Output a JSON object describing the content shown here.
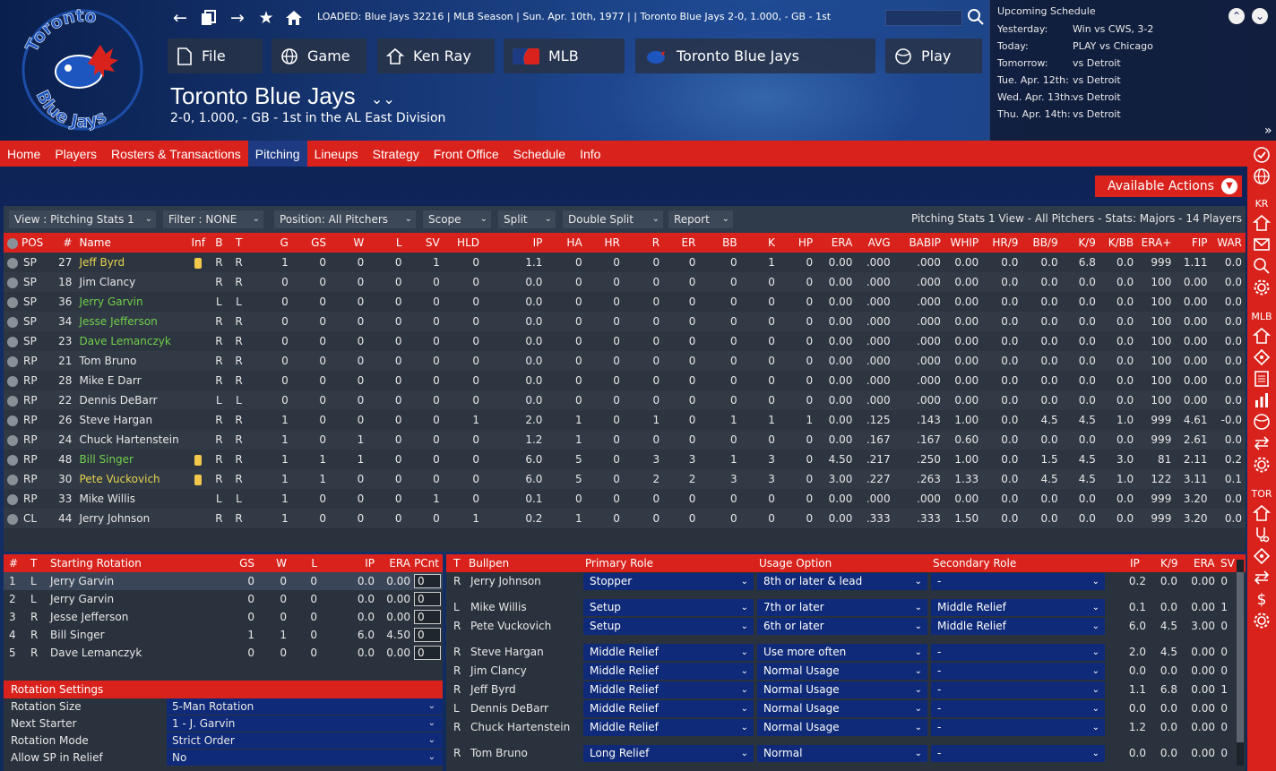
{
  "header": {
    "loaded_text": "LOADED: Blue Jays 32216  |  MLB Season  |  Sun. Apr. 10th, 1977  |   |  Toronto Blue Jays   2-0, 1.000, - GB - 1st",
    "team_title": "Toronto Blue Jays",
    "team_subtitle": "2-0, 1.000, - GB - 1st in the AL East Division",
    "logo_top": "Toronto",
    "logo_bottom": "Blue Jays",
    "buttons": {
      "file": "File",
      "game": "Game",
      "manager": "Ken Ray",
      "league": "MLB",
      "team": "Toronto Blue Jays",
      "play": "Play"
    }
  },
  "schedule": {
    "title": "Upcoming Schedule",
    "rows": [
      {
        "label": "Yesterday:",
        "value": "Win vs CWS, 3-2"
      },
      {
        "label": "Today:",
        "value": "PLAY vs Chicago"
      },
      {
        "label": "Tomorrow:",
        "value": "vs Detroit"
      },
      {
        "label": "Tue. Apr. 12th:",
        "value": "vs Detroit"
      },
      {
        "label": "Wed. Apr. 13th:",
        "value": "vs Detroit"
      },
      {
        "label": "Thu. Apr. 14th:",
        "value": "vs Detroit"
      }
    ]
  },
  "menu": [
    "Home",
    "Players",
    "Rosters & Transactions",
    "Pitching",
    "Lineups",
    "Strategy",
    "Front Office",
    "Schedule",
    "Info"
  ],
  "side": {
    "kr": "KR",
    "mlb": "MLB",
    "tor": "TOR"
  },
  "available_actions": "Available Actions",
  "toolbar": {
    "view": "View : Pitching Stats 1",
    "filter": "Filter : NONE",
    "position": "Position: All Pitchers",
    "scope": "Scope",
    "split": "Split",
    "double_split": "Double Split",
    "report": "Report",
    "info": "Pitching Stats 1 View - All Pitchers - Stats: Majors - 14 Players"
  },
  "stats": {
    "columns": [
      "POS",
      "#",
      "Name",
      "Inf",
      "B",
      "T",
      "G",
      "GS",
      "W",
      "L",
      "SV",
      "HLD",
      "IP",
      "HA",
      "HR",
      "R",
      "ER",
      "BB",
      "K",
      "HP",
      "ERA",
      "AVG",
      "BABIP",
      "WHIP",
      "HR/9",
      "BB/9",
      "K/9",
      "K/BB",
      "ERA+",
      "FIP",
      "WAR"
    ],
    "rows": [
      {
        "pos": "SP",
        "num": "27",
        "name": "Jeff Byrd",
        "color": "y",
        "inf": true,
        "b": "R",
        "t": "R",
        "v": [
          "1",
          "0",
          "0",
          "0",
          "1",
          "0",
          "1.1",
          "0",
          "0",
          "0",
          "0",
          "0",
          "1",
          "0",
          "0.00",
          ".000",
          ".000",
          "0.00",
          "0.0",
          "0.0",
          "6.8",
          "0.0",
          "999",
          "1.11",
          "0.0"
        ]
      },
      {
        "pos": "SP",
        "num": "18",
        "name": "Jim Clancy",
        "color": "",
        "inf": false,
        "b": "R",
        "t": "R",
        "v": [
          "0",
          "0",
          "0",
          "0",
          "0",
          "0",
          "0.0",
          "0",
          "0",
          "0",
          "0",
          "0",
          "0",
          "0",
          "0.00",
          ".000",
          ".000",
          "0.00",
          "0.0",
          "0.0",
          "0.0",
          "0.0",
          "100",
          "0.00",
          "0.0"
        ]
      },
      {
        "pos": "SP",
        "num": "36",
        "name": "Jerry Garvin",
        "color": "g",
        "inf": false,
        "b": "L",
        "t": "L",
        "v": [
          "0",
          "0",
          "0",
          "0",
          "0",
          "0",
          "0.0",
          "0",
          "0",
          "0",
          "0",
          "0",
          "0",
          "0",
          "0.00",
          ".000",
          ".000",
          "0.00",
          "0.0",
          "0.0",
          "0.0",
          "0.0",
          "100",
          "0.00",
          "0.0"
        ]
      },
      {
        "pos": "SP",
        "num": "34",
        "name": "Jesse Jefferson",
        "color": "g",
        "inf": false,
        "b": "R",
        "t": "R",
        "v": [
          "0",
          "0",
          "0",
          "0",
          "0",
          "0",
          "0.0",
          "0",
          "0",
          "0",
          "0",
          "0",
          "0",
          "0",
          "0.00",
          ".000",
          ".000",
          "0.00",
          "0.0",
          "0.0",
          "0.0",
          "0.0",
          "100",
          "0.00",
          "0.0"
        ]
      },
      {
        "pos": "SP",
        "num": "23",
        "name": "Dave Lemanczyk",
        "color": "g",
        "inf": false,
        "b": "R",
        "t": "R",
        "v": [
          "0",
          "0",
          "0",
          "0",
          "0",
          "0",
          "0.0",
          "0",
          "0",
          "0",
          "0",
          "0",
          "0",
          "0",
          "0.00",
          ".000",
          ".000",
          "0.00",
          "0.0",
          "0.0",
          "0.0",
          "0.0",
          "100",
          "0.00",
          "0.0"
        ]
      },
      {
        "pos": "RP",
        "num": "21",
        "name": "Tom Bruno",
        "color": "",
        "inf": false,
        "b": "R",
        "t": "R",
        "v": [
          "0",
          "0",
          "0",
          "0",
          "0",
          "0",
          "0.0",
          "0",
          "0",
          "0",
          "0",
          "0",
          "0",
          "0",
          "0.00",
          ".000",
          ".000",
          "0.00",
          "0.0",
          "0.0",
          "0.0",
          "0.0",
          "100",
          "0.00",
          "0.0"
        ]
      },
      {
        "pos": "RP",
        "num": "28",
        "name": "Mike E Darr",
        "color": "",
        "inf": false,
        "b": "R",
        "t": "R",
        "v": [
          "0",
          "0",
          "0",
          "0",
          "0",
          "0",
          "0.0",
          "0",
          "0",
          "0",
          "0",
          "0",
          "0",
          "0",
          "0.00",
          ".000",
          ".000",
          "0.00",
          "0.0",
          "0.0",
          "0.0",
          "0.0",
          "100",
          "0.00",
          "0.0"
        ]
      },
      {
        "pos": "RP",
        "num": "22",
        "name": "Dennis DeBarr",
        "color": "",
        "inf": false,
        "b": "L",
        "t": "L",
        "v": [
          "0",
          "0",
          "0",
          "0",
          "0",
          "0",
          "0.0",
          "0",
          "0",
          "0",
          "0",
          "0",
          "0",
          "0",
          "0.00",
          ".000",
          ".000",
          "0.00",
          "0.0",
          "0.0",
          "0.0",
          "0.0",
          "100",
          "0.00",
          "0.0"
        ]
      },
      {
        "pos": "RP",
        "num": "26",
        "name": "Steve Hargan",
        "color": "",
        "inf": false,
        "b": "R",
        "t": "R",
        "v": [
          "1",
          "0",
          "0",
          "0",
          "0",
          "1",
          "2.0",
          "1",
          "0",
          "1",
          "0",
          "1",
          "1",
          "1",
          "0.00",
          ".125",
          ".143",
          "1.00",
          "0.0",
          "4.5",
          "4.5",
          "1.0",
          "999",
          "4.61",
          "-0.0"
        ]
      },
      {
        "pos": "RP",
        "num": "24",
        "name": "Chuck Hartenstein",
        "color": "",
        "inf": false,
        "b": "R",
        "t": "R",
        "v": [
          "1",
          "0",
          "1",
          "0",
          "0",
          "0",
          "1.2",
          "1",
          "0",
          "0",
          "0",
          "0",
          "0",
          "0",
          "0.00",
          ".167",
          ".167",
          "0.60",
          "0.0",
          "0.0",
          "0.0",
          "0.0",
          "999",
          "2.61",
          "0.0"
        ]
      },
      {
        "pos": "RP",
        "num": "48",
        "name": "Bill Singer",
        "color": "g",
        "inf": true,
        "b": "R",
        "t": "R",
        "v": [
          "1",
          "1",
          "1",
          "0",
          "0",
          "0",
          "6.0",
          "5",
          "0",
          "3",
          "3",
          "1",
          "3",
          "0",
          "4.50",
          ".217",
          ".250",
          "1.00",
          "0.0",
          "1.5",
          "4.5",
          "3.0",
          "81",
          "2.11",
          "0.2"
        ]
      },
      {
        "pos": "RP",
        "num": "30",
        "name": "Pete Vuckovich",
        "color": "y",
        "inf": true,
        "b": "R",
        "t": "R",
        "v": [
          "1",
          "1",
          "0",
          "0",
          "0",
          "0",
          "6.0",
          "5",
          "0",
          "2",
          "2",
          "3",
          "3",
          "0",
          "3.00",
          ".227",
          ".263",
          "1.33",
          "0.0",
          "4.5",
          "4.5",
          "1.0",
          "122",
          "3.11",
          "0.1"
        ]
      },
      {
        "pos": "RP",
        "num": "33",
        "name": "Mike Willis",
        "color": "",
        "inf": false,
        "b": "L",
        "t": "L",
        "v": [
          "1",
          "0",
          "0",
          "0",
          "1",
          "0",
          "0.1",
          "0",
          "0",
          "0",
          "0",
          "0",
          "0",
          "0",
          "0.00",
          ".000",
          ".000",
          "0.00",
          "0.0",
          "0.0",
          "0.0",
          "0.0",
          "999",
          "3.20",
          "0.0"
        ]
      },
      {
        "pos": "CL",
        "num": "44",
        "name": "Jerry Johnson",
        "color": "",
        "inf": false,
        "b": "R",
        "t": "R",
        "v": [
          "1",
          "0",
          "0",
          "0",
          "0",
          "1",
          "0.2",
          "1",
          "0",
          "0",
          "0",
          "0",
          "0",
          "0",
          "0.00",
          ".333",
          ".333",
          "1.50",
          "0.0",
          "0.0",
          "0.0",
          "0.0",
          "999",
          "3.20",
          "0.0"
        ]
      }
    ]
  },
  "rotation": {
    "columns": [
      "#",
      "T",
      "Starting Rotation",
      "GS",
      "W",
      "L",
      "IP",
      "ERA",
      "PCnt"
    ],
    "rows": [
      {
        "n": "1",
        "t": "L",
        "name": "Jerry Garvin",
        "gs": "0",
        "w": "0",
        "l": "0",
        "ip": "0.0",
        "era": "0.00",
        "pc": "0"
      },
      {
        "n": "2",
        "t": "L",
        "name": "Jerry Garvin",
        "gs": "0",
        "w": "0",
        "l": "0",
        "ip": "0.0",
        "era": "0.00",
        "pc": "0"
      },
      {
        "n": "3",
        "t": "R",
        "name": "Jesse Jefferson",
        "gs": "0",
        "w": "0",
        "l": "0",
        "ip": "0.0",
        "era": "0.00",
        "pc": "0"
      },
      {
        "n": "4",
        "t": "R",
        "name": "Bill Singer",
        "gs": "1",
        "w": "1",
        "l": "0",
        "ip": "6.0",
        "era": "4.50",
        "pc": "0"
      },
      {
        "n": "5",
        "t": "R",
        "name": "Dave Lemanczyk",
        "gs": "0",
        "w": "0",
        "l": "0",
        "ip": "0.0",
        "era": "0.00",
        "pc": "0"
      }
    ],
    "settings_title": "Rotation Settings",
    "settings": [
      {
        "key": "Rotation Size",
        "value": "5-Man Rotation"
      },
      {
        "key": "Next Starter",
        "value": "1 - J. Garvin"
      },
      {
        "key": "Rotation Mode",
        "value": "Strict Order"
      },
      {
        "key": "Allow SP in Relief",
        "value": "No"
      }
    ]
  },
  "bullpen": {
    "columns": [
      "T",
      "Bullpen",
      "Primary Role",
      "Usage Option",
      "Secondary Role",
      "IP",
      "K/9",
      "ERA",
      "SV"
    ],
    "rows": [
      {
        "t": "R",
        "name": "Jerry Johnson",
        "role": "Stopper",
        "usage": "8th or later & lead",
        "sec": "-",
        "ip": "0.2",
        "k9": "0.0",
        "era": "0.00",
        "sv": "0"
      },
      {
        "t": "L",
        "name": "Mike Willis",
        "role": "Setup",
        "usage": "7th or later",
        "sec": "Middle Relief",
        "ip": "0.1",
        "k9": "0.0",
        "era": "0.00",
        "sv": "1"
      },
      {
        "t": "R",
        "name": "Pete Vuckovich",
        "role": "Setup",
        "usage": "6th or later",
        "sec": "Middle Relief",
        "ip": "6.0",
        "k9": "4.5",
        "era": "3.00",
        "sv": "0"
      },
      {
        "t": "R",
        "name": "Steve Hargan",
        "role": "Middle Relief",
        "usage": "Use more often",
        "sec": "-",
        "ip": "2.0",
        "k9": "4.5",
        "era": "0.00",
        "sv": "0"
      },
      {
        "t": "R",
        "name": "Jim Clancy",
        "role": "Middle Relief",
        "usage": "Normal Usage",
        "sec": "-",
        "ip": "0.0",
        "k9": "0.0",
        "era": "0.00",
        "sv": "0"
      },
      {
        "t": "R",
        "name": "Jeff Byrd",
        "role": "Middle Relief",
        "usage": "Normal Usage",
        "sec": "-",
        "ip": "1.1",
        "k9": "6.8",
        "era": "0.00",
        "sv": "1"
      },
      {
        "t": "L",
        "name": "Dennis DeBarr",
        "role": "Middle Relief",
        "usage": "Normal Usage",
        "sec": "-",
        "ip": "0.0",
        "k9": "0.0",
        "era": "0.00",
        "sv": "0"
      },
      {
        "t": "R",
        "name": "Chuck Hartenstein",
        "role": "Middle Relief",
        "usage": "Normal Usage",
        "sec": "-",
        "ip": "1.2",
        "k9": "0.0",
        "era": "0.00",
        "sv": "0"
      },
      {
        "t": "R",
        "name": "Tom Bruno",
        "role": "Long Relief",
        "usage": "Normal",
        "sec": "-",
        "ip": "0.0",
        "k9": "0.0",
        "era": "0.00",
        "sv": "0"
      }
    ]
  },
  "colors": {
    "accent": "#d9221c",
    "navy": "#1d3a82",
    "green_name": "#6fd04a",
    "yellow_name": "#e6d34a"
  }
}
